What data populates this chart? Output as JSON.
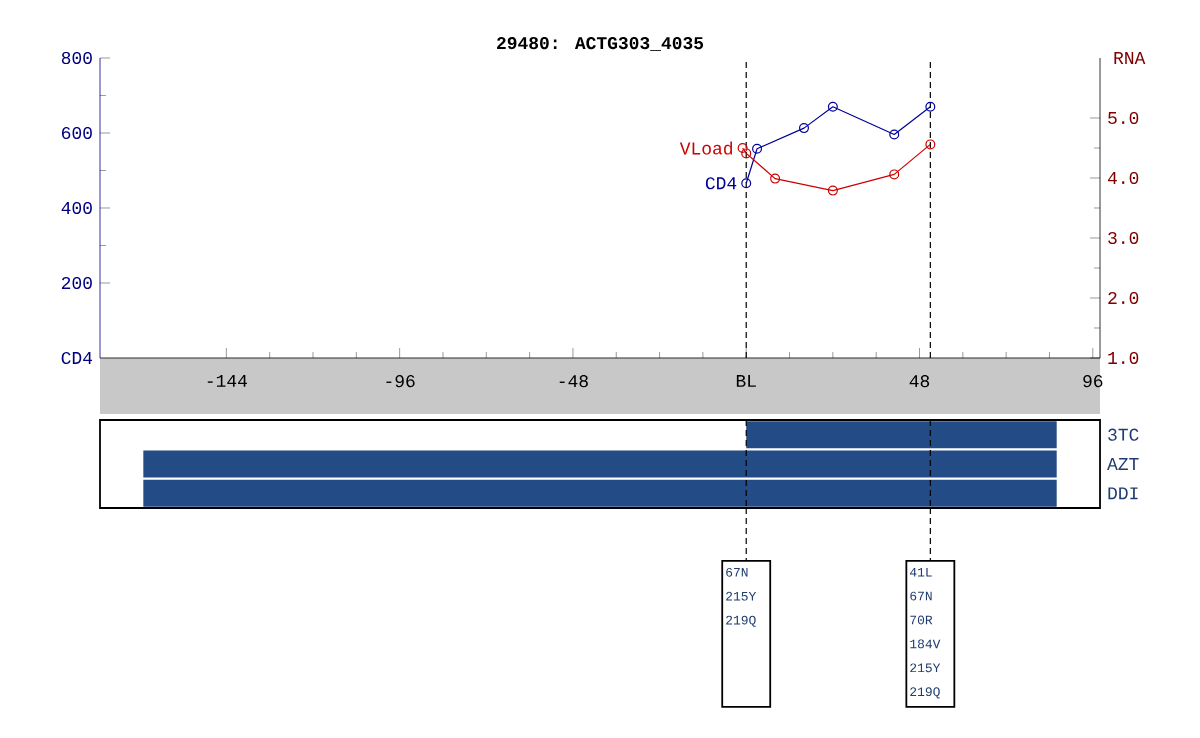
{
  "chart_data": [
    {
      "type": "line",
      "title": "29480: ACTG303_4035",
      "ylabel": "CD4",
      "y2label": "RNA",
      "xlim": [
        -179,
        98
      ],
      "xticks": [
        -144,
        -96,
        -48,
        {
          "value": 0,
          "label": "BL"
        },
        48,
        96
      ],
      "ylim": [
        0,
        800
      ],
      "yticks": [
        200,
        400,
        600,
        800
      ],
      "y2lim": [
        1,
        6
      ],
      "y2ticks": [
        {
          "value": 1,
          "label": "1.0"
        },
        {
          "value": 2,
          "label": "2.0"
        },
        {
          "value": 3,
          "label": "3.0"
        },
        {
          "value": 4,
          "label": "4.0"
        },
        {
          "value": 5,
          "label": "5.0"
        }
      ],
      "marker": "circle",
      "series": [
        {
          "name": "CD4",
          "color": "#000099",
          "x": [
            0,
            3,
            16,
            24,
            41,
            51
          ],
          "values": [
            466,
            558,
            613,
            670,
            596,
            670
          ]
        },
        {
          "name": "VLoad",
          "color": "#cc0000",
          "axis": "y2",
          "x": [
            -1,
            0,
            8,
            24,
            41,
            51
          ],
          "values": [
            4.5,
            4.41,
            3.99,
            3.79,
            4.06,
            4.56
          ]
        }
      ],
      "ref_lines": [
        {
          "axis": "x",
          "value": 0,
          "line_style": "dashed",
          "color": "#000000"
        },
        {
          "axis": "x",
          "value": 51,
          "line_style": "dashed",
          "color": "#000000"
        }
      ]
    },
    {
      "type": "bar",
      "orientation": "horizontal",
      "categories": [
        "3TC",
        "AZT",
        "DDI"
      ],
      "base": [
        0,
        -167,
        -167
      ],
      "values": [
        86,
        253,
        253
      ],
      "color": "#234b85",
      "xlim": [
        -179,
        98
      ],
      "tick_labels": "y",
      "ref_lines": [
        {
          "axis": "x",
          "value": 0,
          "line_style": "dashed",
          "color": "#000000",
          "label": "67N 215Y 219Q"
        },
        {
          "axis": "x",
          "value": 51,
          "line_style": "dashed",
          "color": "#000000",
          "label": "41L 67N 70R 184V 215Y 219Q"
        }
      ]
    }
  ]
}
